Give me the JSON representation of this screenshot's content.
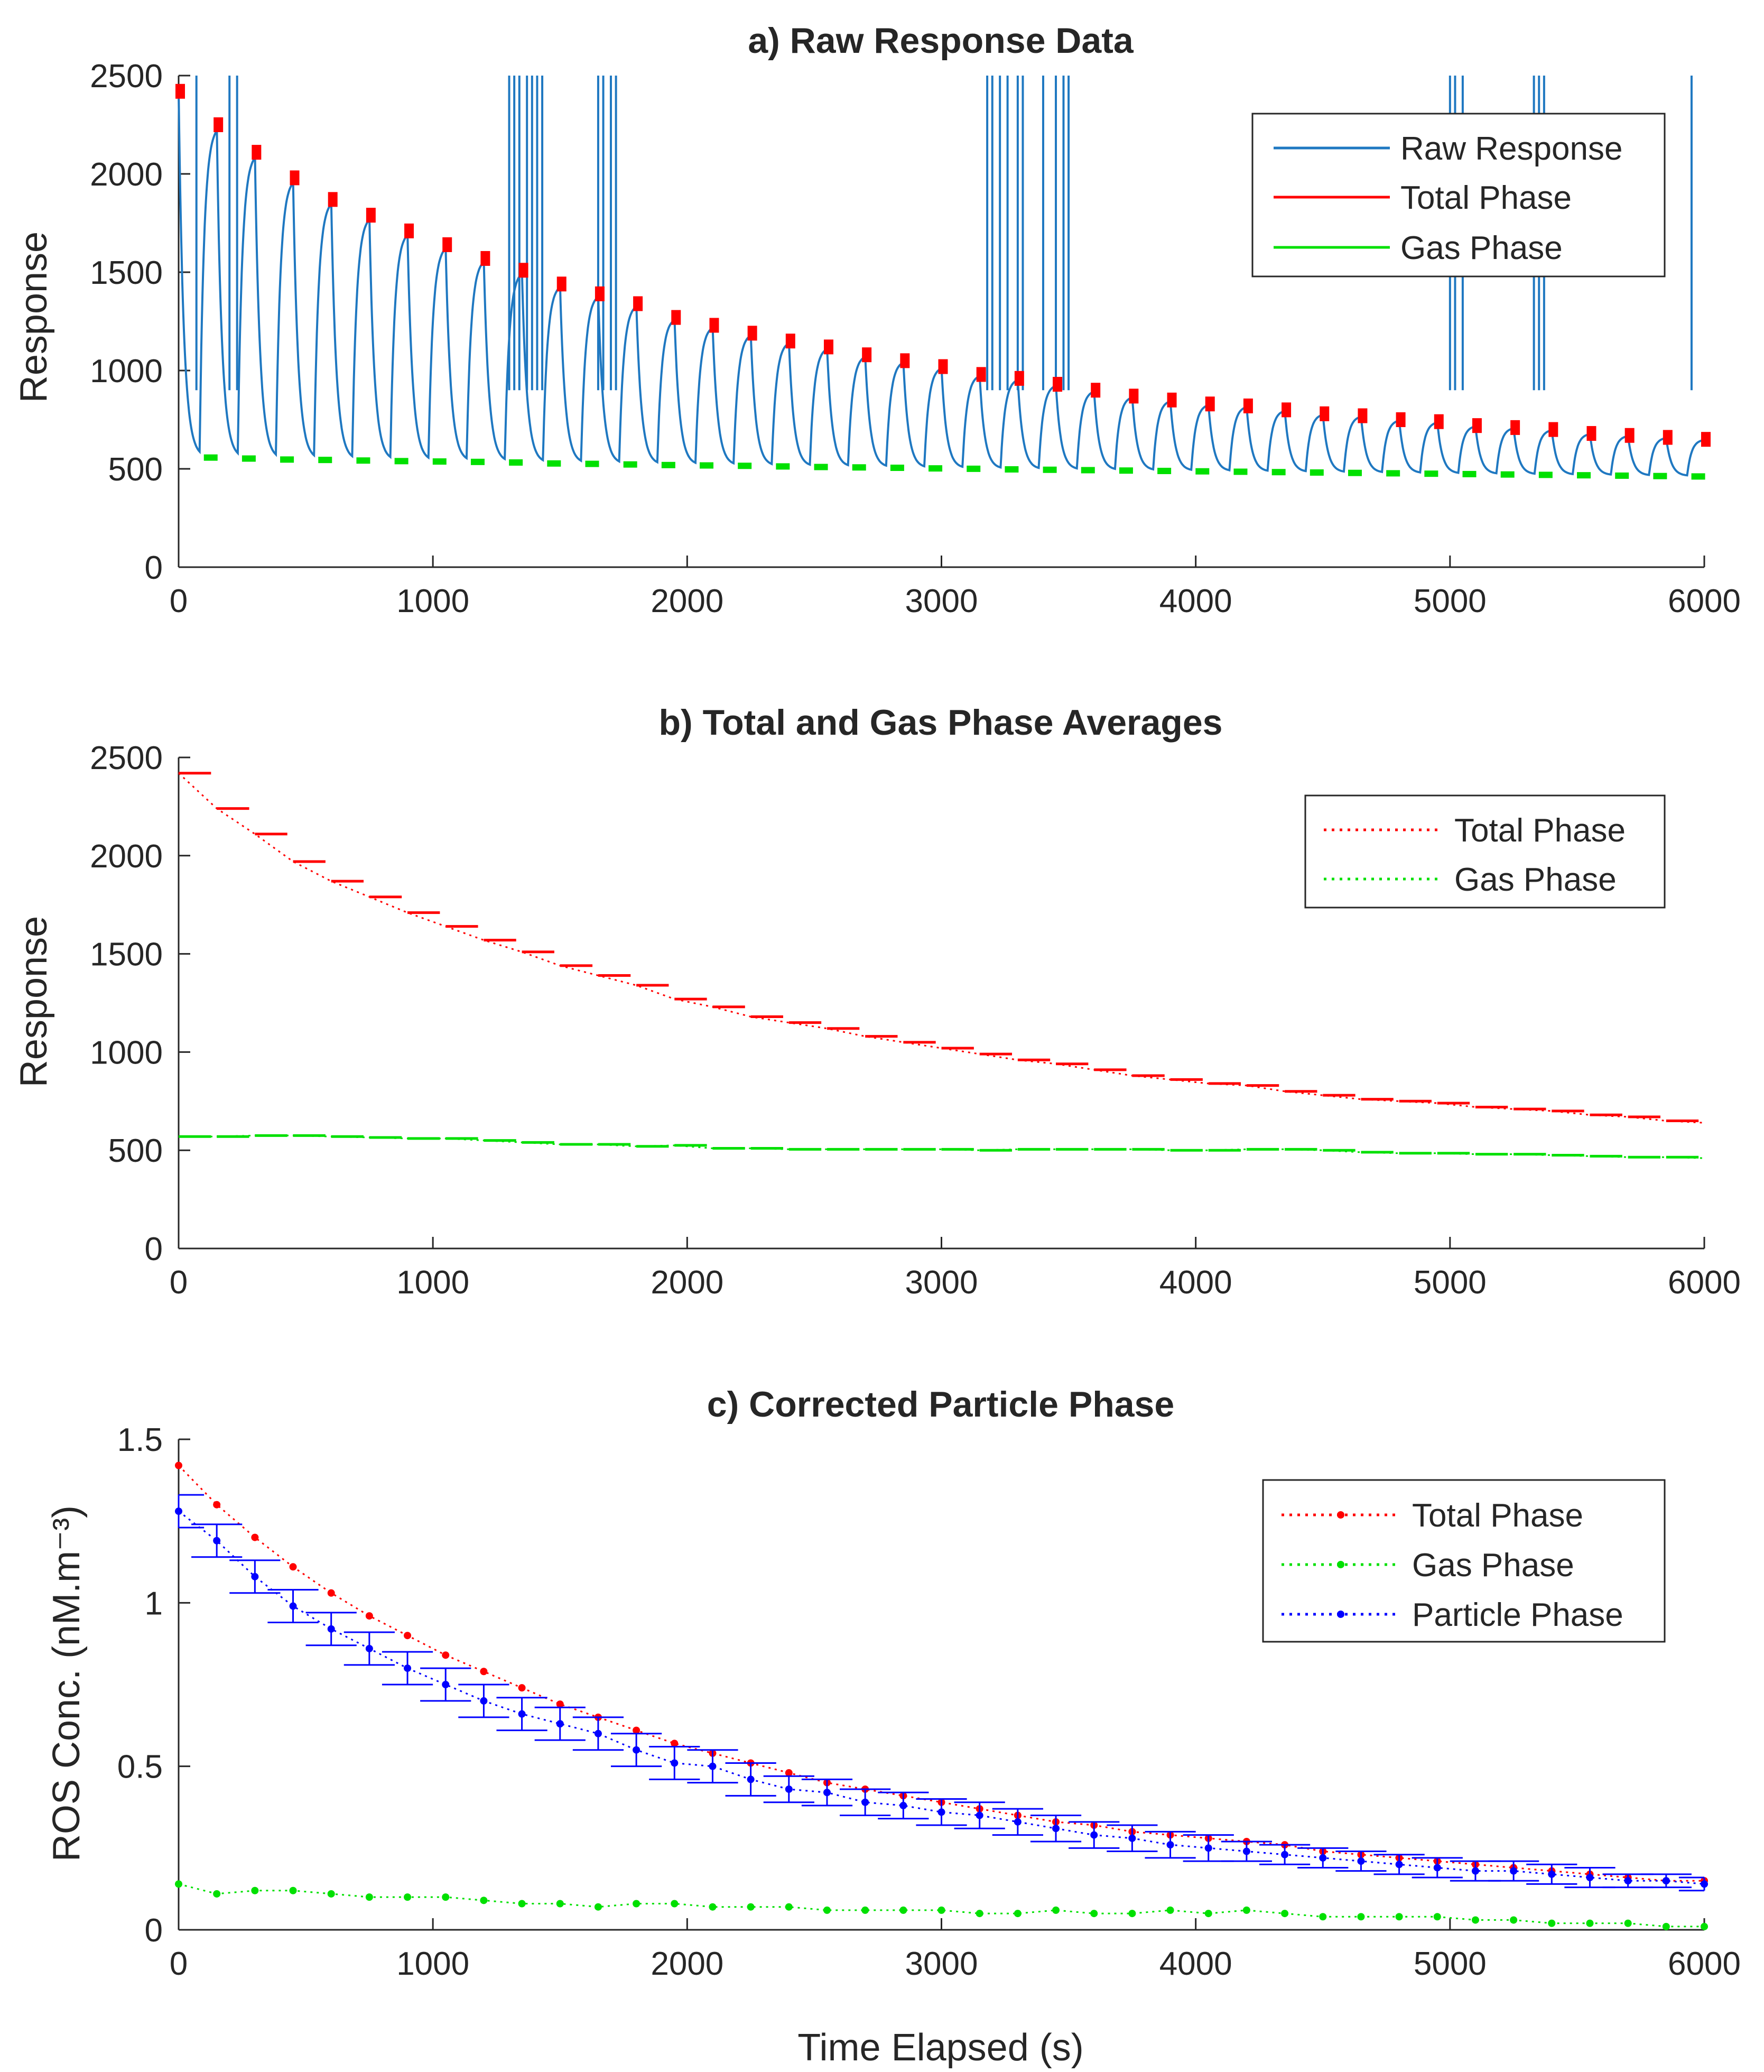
{
  "chart_data": [
    {
      "id": "a",
      "type": "line",
      "title": "a) Raw Response Data",
      "xlabel": "",
      "ylabel": "Response",
      "xlim": [
        0,
        6000
      ],
      "ylim": [
        0,
        2500
      ],
      "xticks": [
        "0",
        "1000",
        "2000",
        "3000",
        "4000",
        "5000",
        "6000"
      ],
      "yticks": [
        "0",
        "500",
        "1000",
        "1500",
        "2000",
        "2500"
      ],
      "legend": {
        "position": "top-right",
        "entries": [
          "Raw Response",
          "Total Phase",
          "Gas Phase"
        ]
      },
      "colors": {
        "raw": "#1f78c1",
        "total": "#ff0000",
        "gas": "#00e000"
      },
      "cycle_seconds": 150,
      "peak_times": [
        0,
        150,
        300,
        450,
        600,
        750,
        900,
        1050,
        1200,
        1350,
        1500,
        1650,
        1800,
        1950,
        2100,
        2250,
        2400,
        2550,
        2700,
        2850,
        3000,
        3150,
        3300,
        3450,
        3600,
        3750,
        3900,
        4050,
        4200,
        4350,
        4500,
        4650,
        4800,
        4950,
        5100,
        5250,
        5400,
        5550,
        5700,
        5850,
        6000
      ],
      "total_phase": [
        2420,
        2250,
        2110,
        1980,
        1870,
        1790,
        1710,
        1640,
        1570,
        1510,
        1440,
        1390,
        1340,
        1270,
        1230,
        1190,
        1150,
        1120,
        1080,
        1050,
        1020,
        980,
        960,
        930,
        900,
        870,
        850,
        830,
        820,
        800,
        780,
        770,
        750,
        740,
        720,
        710,
        700,
        680,
        670,
        660,
        650
      ],
      "gas_phase": [
        560,
        555,
        550,
        548,
        545,
        542,
        540,
        538,
        535,
        530,
        528,
        525,
        522,
        520,
        518,
        515,
        512,
        510,
        508,
        505,
        503,
        500,
        498,
        496,
        494,
        492,
        490,
        488,
        486,
        484,
        482,
        480,
        478,
        476,
        474,
        472,
        470,
        468,
        466,
        464,
        462
      ],
      "spike_times": [
        70,
        200,
        230,
        1300,
        1320,
        1340,
        1370,
        1390,
        1410,
        1430,
        1650,
        1670,
        1700,
        1720,
        3180,
        3200,
        3230,
        3260,
        3300,
        3320,
        3400,
        3450,
        3480,
        3500,
        5000,
        5020,
        5050,
        5330,
        5350,
        5370,
        5950
      ],
      "spike_top": 2500
    },
    {
      "id": "b",
      "type": "line",
      "title": "b) Total and Gas Phase Averages",
      "xlabel": "",
      "ylabel": "Response",
      "xlim": [
        0,
        6000
      ],
      "ylim": [
        0,
        2500
      ],
      "xticks": [
        "0",
        "1000",
        "2000",
        "3000",
        "4000",
        "5000",
        "6000"
      ],
      "yticks": [
        "0",
        "500",
        "1000",
        "1500",
        "2000",
        "2500"
      ],
      "legend": {
        "position": "top-right",
        "entries": [
          "Total Phase",
          "Gas Phase"
        ]
      },
      "colors": {
        "total": "#ff0000",
        "gas": "#00e000"
      },
      "segment_width_s": 150,
      "total_phase": [
        2420,
        2240,
        2110,
        1970,
        1870,
        1790,
        1710,
        1640,
        1570,
        1510,
        1440,
        1390,
        1340,
        1270,
        1230,
        1180,
        1150,
        1120,
        1080,
        1050,
        1020,
        990,
        960,
        940,
        910,
        880,
        860,
        840,
        830,
        800,
        780,
        760,
        750,
        740,
        720,
        710,
        700,
        680,
        670,
        650,
        640
      ],
      "gas_phase": [
        570,
        570,
        575,
        575,
        570,
        565,
        560,
        560,
        550,
        540,
        530,
        530,
        520,
        525,
        510,
        510,
        505,
        505,
        505,
        505,
        505,
        500,
        505,
        505,
        505,
        505,
        500,
        500,
        505,
        505,
        500,
        490,
        485,
        485,
        480,
        480,
        475,
        470,
        465,
        465,
        460
      ]
    },
    {
      "id": "c",
      "type": "line",
      "title": "c) Corrected Particle Phase",
      "xlabel": "Time Elapsed (s)",
      "ylabel": "ROS Conc. (nM.m⁻³)",
      "xlim": [
        0,
        6000
      ],
      "ylim": [
        0,
        1.5
      ],
      "xticks": [
        "0",
        "1000",
        "2000",
        "3000",
        "4000",
        "5000",
        "6000"
      ],
      "yticks": [
        "0",
        "0.5",
        "1",
        "1.5"
      ],
      "legend": {
        "position": "top-right",
        "entries": [
          "Total Phase",
          "Gas Phase",
          "Particle Phase"
        ]
      },
      "colors": {
        "total": "#ff0000",
        "gas": "#00e000",
        "particle": "#0000ff"
      },
      "x": [
        0,
        150,
        300,
        450,
        600,
        750,
        900,
        1050,
        1200,
        1350,
        1500,
        1650,
        1800,
        1950,
        2100,
        2250,
        2400,
        2550,
        2700,
        2850,
        3000,
        3150,
        3300,
        3450,
        3600,
        3750,
        3900,
        4050,
        4200,
        4350,
        4500,
        4650,
        4800,
        4950,
        5100,
        5250,
        5400,
        5550,
        5700,
        5850,
        6000
      ],
      "total_phase": [
        1.42,
        1.3,
        1.2,
        1.11,
        1.03,
        0.96,
        0.9,
        0.84,
        0.79,
        0.74,
        0.69,
        0.65,
        0.61,
        0.57,
        0.54,
        0.51,
        0.48,
        0.45,
        0.43,
        0.41,
        0.39,
        0.37,
        0.35,
        0.33,
        0.32,
        0.3,
        0.29,
        0.28,
        0.27,
        0.26,
        0.24,
        0.23,
        0.22,
        0.21,
        0.2,
        0.19,
        0.18,
        0.17,
        0.16,
        0.15,
        0.15
      ],
      "gas_phase": [
        0.14,
        0.11,
        0.12,
        0.12,
        0.11,
        0.1,
        0.1,
        0.1,
        0.09,
        0.08,
        0.08,
        0.07,
        0.08,
        0.08,
        0.07,
        0.07,
        0.07,
        0.06,
        0.06,
        0.06,
        0.06,
        0.05,
        0.05,
        0.06,
        0.05,
        0.05,
        0.06,
        0.05,
        0.06,
        0.05,
        0.04,
        0.04,
        0.04,
        0.04,
        0.03,
        0.03,
        0.02,
        0.02,
        0.02,
        0.01,
        0.01
      ],
      "particle_phase": [
        1.28,
        1.19,
        1.08,
        0.99,
        0.92,
        0.86,
        0.8,
        0.75,
        0.7,
        0.66,
        0.63,
        0.6,
        0.55,
        0.51,
        0.5,
        0.46,
        0.43,
        0.42,
        0.39,
        0.38,
        0.36,
        0.35,
        0.33,
        0.31,
        0.29,
        0.28,
        0.26,
        0.25,
        0.24,
        0.23,
        0.22,
        0.21,
        0.2,
        0.19,
        0.18,
        0.18,
        0.17,
        0.16,
        0.15,
        0.15,
        0.14
      ],
      "particle_err": [
        0.05,
        0.05,
        0.05,
        0.05,
        0.05,
        0.05,
        0.05,
        0.05,
        0.05,
        0.05,
        0.05,
        0.05,
        0.05,
        0.05,
        0.05,
        0.05,
        0.04,
        0.04,
        0.04,
        0.04,
        0.04,
        0.04,
        0.04,
        0.04,
        0.04,
        0.04,
        0.04,
        0.04,
        0.03,
        0.03,
        0.03,
        0.03,
        0.03,
        0.03,
        0.03,
        0.03,
        0.03,
        0.03,
        0.02,
        0.02,
        0.02
      ],
      "particle_xerr_s": 100
    }
  ]
}
